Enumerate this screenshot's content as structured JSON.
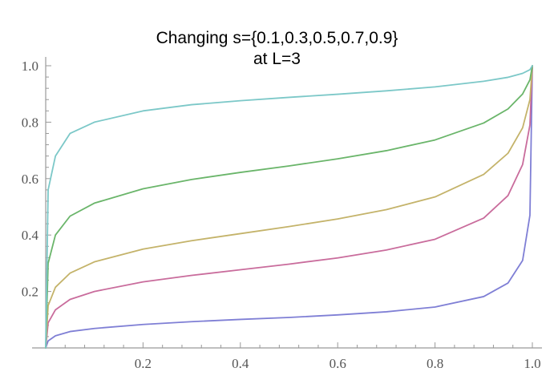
{
  "chart_data": {
    "type": "line",
    "title_lines": [
      "Changing s={0.1,0.3,0.5,0.7,0.9}",
      "at L=3"
    ],
    "xlabel": "",
    "ylabel": "",
    "xlim": [
      0,
      1
    ],
    "ylim": [
      0,
      1.03
    ],
    "grid": false,
    "x_ticks": [
      "0.2",
      "0.4",
      "0.6",
      "0.8",
      "1.0"
    ],
    "y_ticks": [
      "0.2",
      "0.4",
      "0.6",
      "0.8",
      "1.0"
    ],
    "x": [
      0.0,
      0.005,
      0.02,
      0.05,
      0.1,
      0.2,
      0.3,
      0.4,
      0.5,
      0.6,
      0.7,
      0.8,
      0.9,
      0.95,
      0.98,
      0.995,
      1.0
    ],
    "series": [
      {
        "color": "#7f7fd5",
        "values": [
          0.0,
          0.025,
          0.043,
          0.058,
          0.069,
          0.083,
          0.093,
          0.101,
          0.108,
          0.117,
          0.128,
          0.145,
          0.182,
          0.23,
          0.31,
          0.47,
          1.0
        ]
      },
      {
        "color": "#c96c9c",
        "values": [
          0.0,
          0.089,
          0.135,
          0.172,
          0.2,
          0.234,
          0.257,
          0.277,
          0.297,
          0.319,
          0.347,
          0.385,
          0.46,
          0.54,
          0.65,
          0.79,
          1.0
        ]
      },
      {
        "color": "#c4b36a",
        "values": [
          0.0,
          0.15,
          0.215,
          0.265,
          0.305,
          0.35,
          0.38,
          0.405,
          0.43,
          0.457,
          0.49,
          0.535,
          0.615,
          0.69,
          0.78,
          0.88,
          1.0
        ]
      },
      {
        "color": "#6ab56a",
        "values": [
          0.0,
          0.3,
          0.4,
          0.467,
          0.513,
          0.564,
          0.597,
          0.622,
          0.645,
          0.67,
          0.699,
          0.737,
          0.797,
          0.847,
          0.9,
          0.95,
          1.0
        ]
      },
      {
        "color": "#7cc8c8",
        "values": [
          0.0,
          0.56,
          0.68,
          0.76,
          0.8,
          0.84,
          0.862,
          0.876,
          0.888,
          0.899,
          0.911,
          0.925,
          0.945,
          0.959,
          0.973,
          0.986,
          1.0
        ]
      }
    ]
  }
}
